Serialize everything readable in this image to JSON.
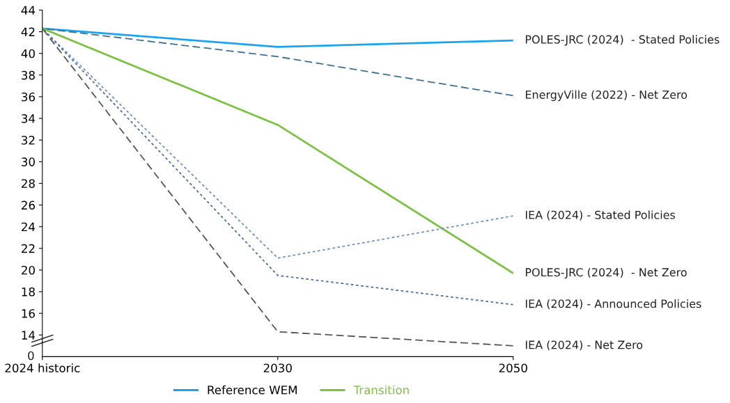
{
  "chart_data": {
    "type": "line",
    "categories": [
      "2024 historic",
      "2030",
      "2050"
    ],
    "series": [
      {
        "name": "POLES-JRC (2024)  - Stated Policies",
        "color": "#1aa3f0",
        "line_style": "solid",
        "values": [
          42.3,
          40.6,
          41.2
        ]
      },
      {
        "name": "EnergyVille (2022) - Net Zero",
        "color": "#3d6f97",
        "line_style": "dashed",
        "values": [
          42.3,
          39.7,
          36.1
        ]
      },
      {
        "name": "POLES-JRC (2024)  - Net Zero",
        "color": "#7cc242",
        "line_style": "solid",
        "values": [
          42.3,
          33.4,
          19.7
        ]
      },
      {
        "name": "IEA (2024) - Stated Policies",
        "color": "#6b8fc4",
        "line_style": "dotted",
        "values": [
          42.3,
          21.1,
          25.0
        ]
      },
      {
        "name": "IEA (2024) - Announced Policies",
        "color": "#4d6e9c",
        "line_style": "dotted",
        "values": [
          42.3,
          19.5,
          16.8
        ]
      },
      {
        "name": "IEA (2024) - Net Zero",
        "color": "#555555",
        "line_style": "dashed",
        "values": [
          42.3,
          14.3,
          13.0
        ]
      }
    ],
    "ylim": [
      12,
      44
    ],
    "yticks": [
      14,
      16,
      18,
      20,
      22,
      24,
      26,
      28,
      30,
      32,
      34,
      36,
      38,
      40,
      42,
      44
    ],
    "annotations": [
      "0",
      "Reference WEM",
      "Transition"
    ],
    "legend": "bottom",
    "grid": false,
    "marker": "none"
  }
}
